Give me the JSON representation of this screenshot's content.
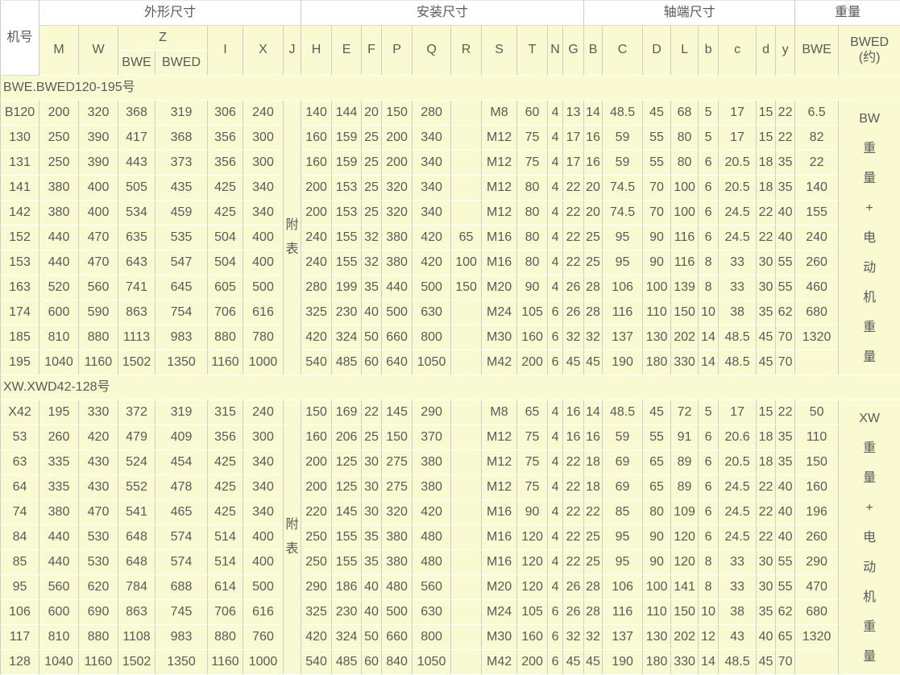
{
  "colors": {
    "cell_background": "#fafad2",
    "header_background": "#ffffff",
    "grid_vertical": "#cccccc",
    "grid_horizontal": "#ffffff",
    "text": "#595959"
  },
  "header": {
    "machine_no": "机号",
    "groups": {
      "outer": "外形尺寸",
      "install": "安装尺寸",
      "shaft": "轴端尺寸",
      "weight": "重量"
    },
    "z": "Z",
    "z_sub": [
      "BWE",
      "BWED"
    ],
    "cols": [
      "M",
      "W",
      "I",
      "X",
      "J",
      "H",
      "E",
      "F",
      "P",
      "Q",
      "R",
      "S",
      "T",
      "N",
      "G",
      "B",
      "C",
      "D",
      "L",
      "b",
      "c",
      "d",
      "y"
    ],
    "weight_cols": [
      "BWE",
      "BWED\n(约)"
    ]
  },
  "sections": [
    {
      "title": "BWE.BWED120-195号",
      "j_note": "附\n表",
      "weight_note": "BW\n重\n量\n+\n电\n动\n机\n重\n量",
      "rows": [
        {
          "model": "B120",
          "cells": [
            "200",
            "320",
            "368",
            "319",
            "306",
            "240",
            "140",
            "144",
            "20",
            "150",
            "280",
            "",
            "M8",
            "60",
            "4",
            "13",
            "14",
            "48.5",
            "45",
            "68",
            "5",
            "17",
            "15",
            "22",
            "6.5"
          ]
        },
        {
          "model": "130",
          "cells": [
            "250",
            "390",
            "417",
            "368",
            "356",
            "300",
            "160",
            "159",
            "25",
            "200",
            "340",
            "",
            "M12",
            "75",
            "4",
            "17",
            "16",
            "59",
            "55",
            "80",
            "5",
            "17",
            "15",
            "22",
            "82"
          ]
        },
        {
          "model": "131",
          "cells": [
            "250",
            "390",
            "443",
            "373",
            "356",
            "300",
            "160",
            "159",
            "25",
            "200",
            "340",
            "",
            "M12",
            "75",
            "4",
            "17",
            "16",
            "59",
            "55",
            "80",
            "6",
            "20.5",
            "18",
            "35",
            "22"
          ]
        },
        {
          "model": "141",
          "cells": [
            "380",
            "400",
            "505",
            "435",
            "425",
            "340",
            "200",
            "153",
            "25",
            "320",
            "340",
            "",
            "M12",
            "80",
            "4",
            "22",
            "20",
            "74.5",
            "70",
            "100",
            "6",
            "20.5",
            "18",
            "35",
            "140"
          ]
        },
        {
          "model": "142",
          "cells": [
            "380",
            "400",
            "534",
            "459",
            "425",
            "340",
            "200",
            "153",
            "25",
            "320",
            "340",
            "",
            "M12",
            "80",
            "4",
            "22",
            "20",
            "74.5",
            "70",
            "100",
            "6",
            "24.5",
            "22",
            "40",
            "155"
          ]
        },
        {
          "model": "152",
          "cells": [
            "440",
            "470",
            "635",
            "535",
            "504",
            "400",
            "240",
            "155",
            "32",
            "380",
            "420",
            "65",
            "M16",
            "80",
            "4",
            "22",
            "25",
            "95",
            "90",
            "116",
            "6",
            "24.5",
            "22",
            "40",
            "240"
          ]
        },
        {
          "model": "153",
          "cells": [
            "440",
            "470",
            "643",
            "547",
            "504",
            "400",
            "240",
            "155",
            "32",
            "380",
            "420",
            "100",
            "M16",
            "80",
            "4",
            "22",
            "25",
            "95",
            "90",
            "116",
            "8",
            "33",
            "30",
            "55",
            "260"
          ]
        },
        {
          "model": "163",
          "cells": [
            "520",
            "560",
            "741",
            "645",
            "605",
            "500",
            "280",
            "199",
            "35",
            "440",
            "500",
            "150",
            "M20",
            "90",
            "4",
            "26",
            "28",
            "106",
            "100",
            "139",
            "8",
            "33",
            "30",
            "55",
            "460"
          ]
        },
        {
          "model": "174",
          "cells": [
            "600",
            "590",
            "863",
            "754",
            "706",
            "616",
            "325",
            "230",
            "40",
            "500",
            "630",
            "",
            "M24",
            "105",
            "6",
            "26",
            "28",
            "116",
            "110",
            "150",
            "10",
            "38",
            "35",
            "62",
            "680"
          ]
        },
        {
          "model": "185",
          "cells": [
            "810",
            "880",
            "1113",
            "983",
            "880",
            "780",
            "420",
            "324",
            "50",
            "660",
            "800",
            "",
            "M30",
            "160",
            "6",
            "32",
            "32",
            "137",
            "130",
            "202",
            "14",
            "48.5",
            "45",
            "70",
            "1320"
          ]
        },
        {
          "model": "195",
          "cells": [
            "1040",
            "1160",
            "1502",
            "1350",
            "1160",
            "1000",
            "540",
            "485",
            "60",
            "640",
            "1050",
            "",
            "M42",
            "200",
            "6",
            "45",
            "45",
            "190",
            "180",
            "330",
            "14",
            "48.5",
            "45",
            "70",
            ""
          ]
        }
      ]
    },
    {
      "title": "XW.XWD42-128号",
      "j_note": "附\n表",
      "weight_note": "XW\n重\n量\n+\n电\n动\n机\n重\n量",
      "rows": [
        {
          "model": "X42",
          "cells": [
            "195",
            "330",
            "372",
            "319",
            "315",
            "240",
            "150",
            "169",
            "22",
            "145",
            "290",
            "",
            "M8",
            "65",
            "4",
            "16",
            "14",
            "48.5",
            "45",
            "72",
            "5",
            "17",
            "15",
            "22",
            "50"
          ]
        },
        {
          "model": "53",
          "cells": [
            "260",
            "420",
            "479",
            "409",
            "356",
            "300",
            "160",
            "206",
            "25",
            "150",
            "370",
            "",
            "M12",
            "75",
            "4",
            "16",
            "16",
            "59",
            "55",
            "91",
            "6",
            "20.6",
            "18",
            "35",
            "110"
          ]
        },
        {
          "model": "63",
          "cells": [
            "335",
            "430",
            "524",
            "454",
            "425",
            "340",
            "200",
            "125",
            "30",
            "275",
            "380",
            "",
            "M12",
            "75",
            "4",
            "22",
            "18",
            "69",
            "65",
            "89",
            "6",
            "20.5",
            "18",
            "35",
            "150"
          ]
        },
        {
          "model": "64",
          "cells": [
            "335",
            "430",
            "552",
            "478",
            "425",
            "340",
            "200",
            "125",
            "30",
            "275",
            "380",
            "",
            "M12",
            "75",
            "4",
            "22",
            "18",
            "69",
            "65",
            "89",
            "6",
            "24.5",
            "22",
            "40",
            "160"
          ]
        },
        {
          "model": "74",
          "cells": [
            "380",
            "470",
            "541",
            "465",
            "425",
            "340",
            "220",
            "145",
            "30",
            "320",
            "420",
            "",
            "M16",
            "90",
            "4",
            "22",
            "22",
            "85",
            "80",
            "109",
            "6",
            "24.5",
            "22",
            "40",
            "196"
          ]
        },
        {
          "model": "84",
          "cells": [
            "440",
            "530",
            "648",
            "574",
            "514",
            "400",
            "250",
            "155",
            "35",
            "380",
            "480",
            "",
            "M16",
            "120",
            "4",
            "22",
            "25",
            "95",
            "90",
            "120",
            "6",
            "24.5",
            "22",
            "40",
            "260"
          ]
        },
        {
          "model": "85",
          "cells": [
            "440",
            "530",
            "648",
            "574",
            "514",
            "400",
            "250",
            "155",
            "35",
            "380",
            "480",
            "",
            "M16",
            "120",
            "4",
            "22",
            "25",
            "95",
            "90",
            "120",
            "8",
            "33",
            "30",
            "55",
            "290"
          ]
        },
        {
          "model": "95",
          "cells": [
            "560",
            "620",
            "784",
            "688",
            "614",
            "500",
            "290",
            "186",
            "40",
            "480",
            "560",
            "",
            "M20",
            "120",
            "4",
            "26",
            "28",
            "106",
            "100",
            "141",
            "8",
            "33",
            "30",
            "55",
            "470"
          ]
        },
        {
          "model": "106",
          "cells": [
            "600",
            "690",
            "863",
            "745",
            "706",
            "616",
            "325",
            "230",
            "40",
            "500",
            "630",
            "",
            "M24",
            "105",
            "6",
            "26",
            "28",
            "116",
            "110",
            "150",
            "10",
            "38",
            "35",
            "62",
            "680"
          ]
        },
        {
          "model": "117",
          "cells": [
            "810",
            "880",
            "1108",
            "983",
            "880",
            "760",
            "420",
            "324",
            "50",
            "660",
            "800",
            "",
            "M30",
            "160",
            "6",
            "32",
            "32",
            "137",
            "130",
            "202",
            "12",
            "43",
            "40",
            "65",
            "1320"
          ]
        },
        {
          "model": "128",
          "cells": [
            "1040",
            "1160",
            "1502",
            "1350",
            "1160",
            "1000",
            "540",
            "485",
            "60",
            "840",
            "1050",
            "",
            "M42",
            "200",
            "6",
            "45",
            "45",
            "190",
            "180",
            "330",
            "14",
            "48.5",
            "45",
            "70",
            ""
          ]
        }
      ]
    }
  ]
}
